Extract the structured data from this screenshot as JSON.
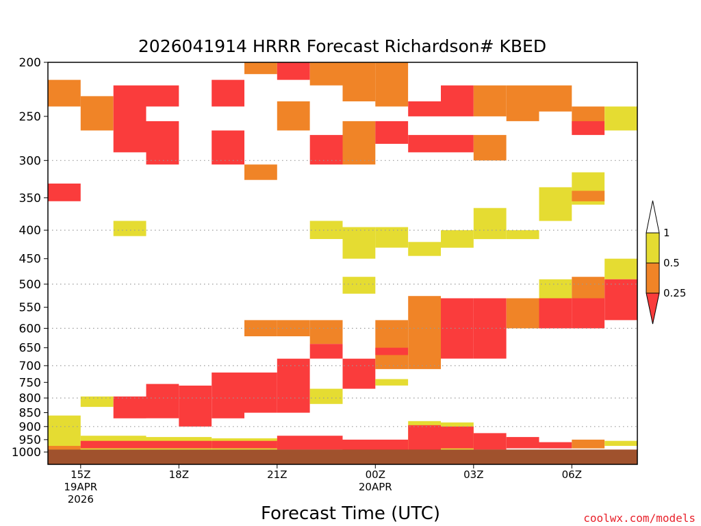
{
  "chart_data": {
    "type": "heatmap",
    "title": "2026041914 HRRR Forecast Richardson# KBED",
    "xlabel": "Forecast Time (UTC)",
    "credit": "coolwx.com/models",
    "x_ticks": [
      {
        "hour": 1,
        "lines": [
          "15Z",
          "19APR",
          "2026"
        ]
      },
      {
        "hour": 4,
        "lines": [
          "18Z"
        ]
      },
      {
        "hour": 7,
        "lines": [
          "21Z"
        ]
      },
      {
        "hour": 10,
        "lines": [
          "00Z",
          "20APR"
        ]
      },
      {
        "hour": 13,
        "lines": [
          "03Z"
        ]
      },
      {
        "hour": 16,
        "lines": [
          "06Z"
        ]
      }
    ],
    "xlim": [
      0,
      18
    ],
    "y_scale": "log",
    "ylim": [
      1000,
      200
    ],
    "y_ticks": [
      200,
      250,
      300,
      350,
      400,
      450,
      500,
      550,
      600,
      650,
      700,
      750,
      800,
      850,
      900,
      950,
      1000
    ],
    "gridlines": [
      300,
      400,
      500,
      600,
      700,
      800,
      900
    ],
    "colorbar": {
      "levels": [
        "1",
        "0.5",
        "0.25"
      ],
      "classes": [
        {
          "name": "white",
          "range": "> 1",
          "color": "#ffffff"
        },
        {
          "name": "yellow",
          "range": "0.5 - 1",
          "color": "#e5dc32"
        },
        {
          "name": "orange",
          "range": "0.25 - 0.5",
          "color": "#f08427"
        },
        {
          "name": "red",
          "range": "< 0.25",
          "color": "#fa3c3c"
        }
      ]
    },
    "ground_color": "#a0522d",
    "ground_top": 990,
    "cells": [
      [
        0,
        1,
        860,
        1000,
        "yellow"
      ],
      [
        0,
        1,
        975,
        990,
        "orange"
      ],
      [
        1,
        3,
        935,
        990,
        "yellow"
      ],
      [
        1,
        3,
        955,
        985,
        "red"
      ],
      [
        3,
        5,
        940,
        990,
        "yellow"
      ],
      [
        3,
        5,
        955,
        985,
        "red"
      ],
      [
        5,
        7,
        945,
        990,
        "yellow"
      ],
      [
        5,
        7,
        955,
        985,
        "red"
      ],
      [
        7,
        9,
        935,
        990,
        "red"
      ],
      [
        9,
        11,
        950,
        990,
        "red"
      ],
      [
        11,
        12,
        880,
        990,
        "yellow"
      ],
      [
        11,
        12,
        895,
        990,
        "red"
      ],
      [
        12,
        13,
        885,
        990,
        "yellow"
      ],
      [
        12,
        13,
        900,
        985,
        "red"
      ],
      [
        13,
        14,
        925,
        990,
        "red"
      ],
      [
        14,
        15,
        940,
        985,
        "red"
      ],
      [
        15,
        16,
        960,
        985,
        "red"
      ],
      [
        16,
        17,
        950,
        985,
        "orange"
      ],
      [
        17,
        18,
        955,
        975,
        "yellow"
      ],
      [
        1,
        2,
        795,
        830,
        "yellow"
      ],
      [
        2,
        3,
        795,
        870,
        "red"
      ],
      [
        3,
        4,
        755,
        870,
        "red"
      ],
      [
        4,
        5,
        760,
        900,
        "red"
      ],
      [
        5,
        6,
        720,
        870,
        "red"
      ],
      [
        6,
        7,
        720,
        850,
        "red"
      ],
      [
        7,
        8,
        680,
        850,
        "red"
      ],
      [
        8,
        9,
        770,
        820,
        "yellow"
      ],
      [
        9,
        10,
        680,
        770,
        "red"
      ],
      [
        10,
        11,
        740,
        760,
        "yellow"
      ],
      [
        6,
        7,
        580,
        620,
        "orange"
      ],
      [
        7,
        8,
        580,
        620,
        "orange"
      ],
      [
        8,
        9,
        580,
        640,
        "orange"
      ],
      [
        8,
        9,
        640,
        680,
        "red"
      ],
      [
        10,
        11,
        580,
        710,
        "orange"
      ],
      [
        10,
        11,
        650,
        670,
        "red"
      ],
      [
        11,
        12,
        525,
        710,
        "orange"
      ],
      [
        12,
        13,
        530,
        680,
        "red"
      ],
      [
        13,
        14,
        530,
        680,
        "red"
      ],
      [
        14,
        15,
        530,
        600,
        "orange"
      ],
      [
        15,
        16,
        490,
        530,
        "yellow"
      ],
      [
        15,
        16,
        530,
        600,
        "red"
      ],
      [
        16,
        17,
        485,
        530,
        "orange"
      ],
      [
        16,
        17,
        530,
        600,
        "red"
      ],
      [
        17,
        18,
        450,
        490,
        "yellow"
      ],
      [
        17,
        18,
        490,
        580,
        "red"
      ],
      [
        10,
        11,
        395,
        430,
        "yellow"
      ],
      [
        11,
        12,
        420,
        445,
        "yellow"
      ],
      [
        12,
        13,
        400,
        430,
        "yellow"
      ],
      [
        13,
        14,
        365,
        415,
        "yellow"
      ],
      [
        14,
        15,
        400,
        415,
        "yellow"
      ],
      [
        15,
        16,
        335,
        385,
        "yellow"
      ],
      [
        16,
        17,
        315,
        360,
        "yellow"
      ],
      [
        16,
        17,
        340,
        355,
        "orange"
      ],
      [
        8,
        9,
        385,
        415,
        "yellow"
      ],
      [
        9,
        10,
        395,
        450,
        "yellow"
      ],
      [
        9,
        10,
        485,
        520,
        "yellow"
      ],
      [
        2,
        3,
        385,
        410,
        "yellow"
      ],
      [
        0,
        1,
        330,
        355,
        "red"
      ],
      [
        6,
        7,
        305,
        325,
        "orange"
      ],
      [
        0,
        1,
        215,
        240,
        "orange"
      ],
      [
        1,
        2,
        230,
        265,
        "orange"
      ],
      [
        2,
        3,
        220,
        290,
        "red"
      ],
      [
        3,
        4,
        220,
        240,
        "red"
      ],
      [
        3,
        4,
        255,
        305,
        "red"
      ],
      [
        5,
        6,
        215,
        240,
        "red"
      ],
      [
        5,
        6,
        265,
        305,
        "red"
      ],
      [
        6,
        7,
        200,
        210,
        "orange"
      ],
      [
        7,
        8,
        200,
        215,
        "red"
      ],
      [
        7,
        8,
        235,
        265,
        "orange"
      ],
      [
        8,
        9,
        200,
        220,
        "orange"
      ],
      [
        8,
        9,
        270,
        305,
        "red"
      ],
      [
        9,
        10,
        200,
        235,
        "orange"
      ],
      [
        9,
        10,
        255,
        305,
        "orange"
      ],
      [
        10,
        11,
        200,
        240,
        "orange"
      ],
      [
        10,
        11,
        255,
        280,
        "red"
      ],
      [
        11,
        12,
        235,
        250,
        "red"
      ],
      [
        11,
        12,
        270,
        290,
        "red"
      ],
      [
        12,
        13,
        220,
        250,
        "red"
      ],
      [
        12,
        13,
        270,
        290,
        "red"
      ],
      [
        13,
        14,
        220,
        250,
        "orange"
      ],
      [
        13,
        14,
        270,
        300,
        "orange"
      ],
      [
        14,
        15,
        220,
        255,
        "orange"
      ],
      [
        15,
        16,
        220,
        245,
        "orange"
      ],
      [
        16,
        17,
        240,
        265,
        "orange"
      ],
      [
        16,
        17,
        255,
        270,
        "red"
      ],
      [
        17,
        18,
        240,
        265,
        "yellow"
      ]
    ]
  }
}
